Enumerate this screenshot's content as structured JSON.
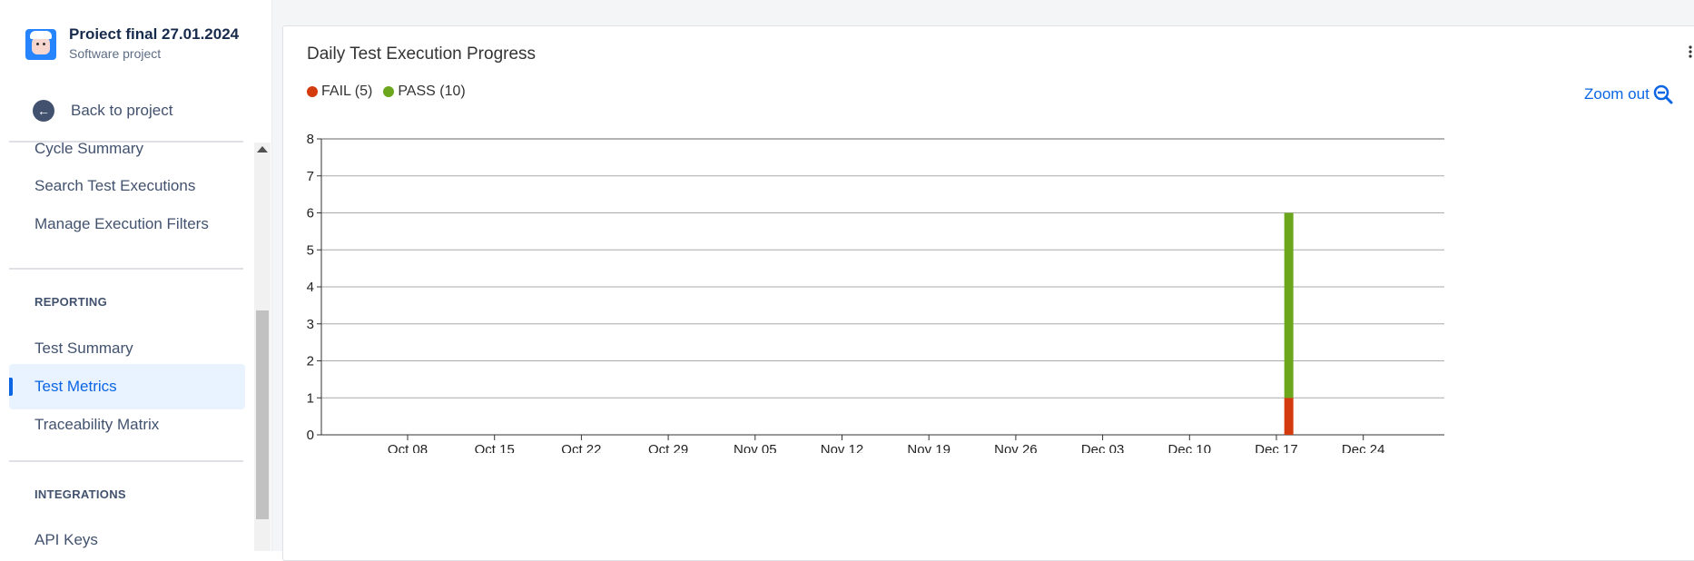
{
  "project": {
    "name": "Proiect final 27.01.2024",
    "type": "Software project"
  },
  "back_label": "Back to project",
  "nav": {
    "items_top": [
      "Cycle Summary",
      "Search Test Executions",
      "Manage Execution Filters"
    ],
    "reporting_heading": "REPORTING",
    "reporting_items": [
      "Test Summary",
      "Test Metrics",
      "Traceability Matrix"
    ],
    "active_item": "Test Metrics",
    "integrations_heading": "INTEGRATIONS",
    "integrations_items": [
      "API Keys"
    ]
  },
  "panel": {
    "title": "Daily Test Execution Progress",
    "zoom_label": "Zoom out",
    "menu_icon": "vertical-dots-icon"
  },
  "legend": [
    {
      "label": "FAIL (5)",
      "color": "#d33a0e"
    },
    {
      "label": "PASS (10)",
      "color": "#6ca61c"
    }
  ],
  "chart_data": {
    "type": "bar",
    "stacked": true,
    "x_tick_labels": [
      "Oct 08",
      "Oct 15",
      "Oct 22",
      "Oct 29",
      "Nov 05",
      "Nov 12",
      "Nov 19",
      "Nov 26",
      "Dec 03",
      "Dec 10",
      "Dec 17",
      "Dec 24"
    ],
    "y_ticks": [
      0,
      1,
      2,
      3,
      4,
      5,
      6,
      7,
      8
    ],
    "ylim": [
      0,
      8
    ],
    "grid": true,
    "bars": [
      {
        "date": "Dec 18",
        "segments": [
          {
            "series": "FAIL",
            "value": 1,
            "color": "#d33a0e"
          },
          {
            "series": "PASS",
            "value": 5,
            "color": "#6ca61c"
          }
        ]
      }
    ]
  }
}
